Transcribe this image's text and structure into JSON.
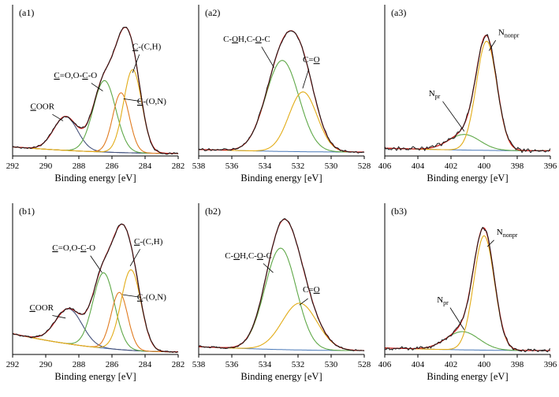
{
  "figure": {
    "xlabel": "Binding energy [eV]",
    "background": "#ffffff",
    "colors": {
      "experimental": "#1a1a1a",
      "envelope": "#cf2020",
      "green": "#5fa848",
      "orange": "#e07b20",
      "gold": "#e2ac18",
      "navy": "#45517b",
      "baseline": "#4878b8",
      "text": "#000000"
    }
  },
  "chart_data": [
    {
      "type": "line",
      "id": "a1",
      "panel_label": "(a1)",
      "x_max": 292,
      "x_min": 282,
      "ticks": [
        292,
        290,
        288,
        286,
        284,
        282
      ],
      "xlabel": "Binding energy [eV]",
      "noise": 0.012,
      "seed": 101,
      "baseline": {
        "left": 0.07,
        "right": 0.02
      },
      "peaks": [
        {
          "name": "COOR",
          "center": 288.8,
          "sigma": 0.72,
          "amp": 0.26,
          "color": "navy"
        },
        {
          "name": "C=O,O-C-O",
          "center": 286.45,
          "sigma": 0.68,
          "amp": 0.55,
          "color": "green"
        },
        {
          "name": "C-(O,N)",
          "center": 285.45,
          "sigma": 0.5,
          "amp": 0.46,
          "color": "orange"
        },
        {
          "name": "C-(C,H)",
          "center": 284.75,
          "sigma": 0.55,
          "amp": 0.64,
          "color": "gold"
        }
      ],
      "annotations": [
        {
          "segments": [
            {
              "t": "C",
              "u": true
            },
            {
              "t": "OOR"
            }
          ],
          "x": 290.2,
          "y": 0.36,
          "anchor": "middle",
          "line": [
            289.6,
            0.32,
            288.95,
            0.27
          ]
        },
        {
          "segments": [
            {
              "t": "C",
              "u": true
            },
            {
              "t": "=O,O-"
            },
            {
              "t": "C",
              "u": true
            },
            {
              "t": "-O"
            }
          ],
          "x": 288.2,
          "y": 0.6,
          "anchor": "middle",
          "line": [
            287.25,
            0.56,
            286.55,
            0.5
          ]
        },
        {
          "segments": [
            {
              "t": "C",
              "u": true
            },
            {
              "t": "-(C,H)"
            }
          ],
          "x": 283.9,
          "y": 0.82,
          "anchor": "middle",
          "line": [
            284.35,
            0.78,
            284.75,
            0.64
          ]
        },
        {
          "segments": [
            {
              "t": "C",
              "u": true
            },
            {
              "t": "-(O,N)"
            }
          ],
          "x": 283.6,
          "y": 0.4,
          "anchor": "middle",
          "line": [
            284.25,
            0.42,
            285.3,
            0.44
          ]
        }
      ]
    },
    {
      "type": "line",
      "id": "a2",
      "panel_label": "(a2)",
      "x_max": 538,
      "x_min": 528,
      "ticks": [
        538,
        536,
        534,
        532,
        530,
        528
      ],
      "xlabel": "Binding energy [eV]",
      "noise": 0.012,
      "seed": 202,
      "baseline": {
        "left": 0.05,
        "right": 0.03
      },
      "peaks": [
        {
          "name": "C-OH,C-O-C",
          "center": 532.95,
          "sigma": 1.0,
          "amp": 0.7,
          "color": "green"
        },
        {
          "name": "C=O",
          "center": 531.7,
          "sigma": 0.85,
          "amp": 0.46,
          "color": "gold"
        }
      ],
      "annotations": [
        {
          "segments": [
            {
              "t": "C-"
            },
            {
              "t": "O",
              "u": true
            },
            {
              "t": "H,C-"
            },
            {
              "t": "O",
              "u": true
            },
            {
              "t": "-C"
            }
          ],
          "x": 535.1,
          "y": 0.88,
          "anchor": "middle",
          "line": [
            534.2,
            0.84,
            533.45,
            0.68
          ]
        },
        {
          "segments": [
            {
              "t": "C="
            },
            {
              "t": "O",
              "u": true
            }
          ],
          "x": 531.2,
          "y": 0.72,
          "anchor": "middle",
          "line": [
            531.35,
            0.67,
            531.72,
            0.52
          ]
        }
      ]
    },
    {
      "type": "line",
      "id": "a3",
      "panel_label": "(a3)",
      "x_max": 406,
      "x_min": 396,
      "ticks": [
        406,
        404,
        402,
        400,
        398,
        396
      ],
      "xlabel": "Binding energy [eV]",
      "noise": 0.022,
      "seed": 303,
      "baseline": {
        "left": 0.06,
        "right": 0.04
      },
      "peaks": [
        {
          "name": "Npr",
          "center": 401.2,
          "sigma": 0.95,
          "amp": 0.12,
          "color": "green"
        },
        {
          "name": "Nnonpr",
          "center": 399.85,
          "sigma": 0.62,
          "amp": 0.84,
          "color": "gold"
        }
      ],
      "annotations": [
        {
          "segments": [
            {
              "t": "N"
            },
            {
              "t": "nonpr",
              "sub": true
            }
          ],
          "x": 399.15,
          "y": 0.93,
          "anchor": "start",
          "line": [
            399.3,
            0.89,
            399.7,
            0.81
          ]
        },
        {
          "segments": [
            {
              "t": "N"
            },
            {
              "t": "pr",
              "sub": true
            }
          ],
          "x": 403.0,
          "y": 0.46,
          "anchor": "middle",
          "line": [
            402.5,
            0.42,
            401.2,
            0.19
          ]
        }
      ]
    },
    {
      "type": "line",
      "id": "b1",
      "panel_label": "(b1)",
      "x_max": 292,
      "x_min": 282,
      "ticks": [
        292,
        290,
        288,
        286,
        284,
        282
      ],
      "xlabel": "Binding energy [eV]",
      "noise": 0.012,
      "seed": 404,
      "baseline": {
        "left": 0.16,
        "right": 0.02
      },
      "peaks": [
        {
          "name": "COOR",
          "center": 288.6,
          "sigma": 0.8,
          "amp": 0.27,
          "color": "navy"
        },
        {
          "name": "C=O,O-C-O",
          "center": 286.5,
          "sigma": 0.65,
          "amp": 0.58,
          "color": "green"
        },
        {
          "name": "C-(O,N)",
          "center": 285.55,
          "sigma": 0.5,
          "amp": 0.44,
          "color": "orange"
        },
        {
          "name": "C-(C,H)",
          "center": 284.85,
          "sigma": 0.6,
          "amp": 0.62,
          "color": "gold"
        }
      ],
      "annotations": [
        {
          "segments": [
            {
              "t": "C",
              "u": true
            },
            {
              "t": "=O,O-"
            },
            {
              "t": "C",
              "u": true
            },
            {
              "t": "-O"
            }
          ],
          "x": 288.3,
          "y": 0.8,
          "anchor": "middle",
          "line": [
            287.3,
            0.76,
            286.6,
            0.63
          ]
        },
        {
          "segments": [
            {
              "t": "C",
              "u": true
            },
            {
              "t": "-(C,H)"
            }
          ],
          "x": 283.8,
          "y": 0.85,
          "anchor": "middle",
          "line": [
            284.3,
            0.81,
            284.9,
            0.68
          ]
        },
        {
          "segments": [
            {
              "t": "C",
              "u": true
            },
            {
              "t": "OOR"
            }
          ],
          "x": 290.25,
          "y": 0.34,
          "anchor": "middle",
          "line": [
            289.6,
            0.3,
            288.8,
            0.28
          ]
        },
        {
          "segments": [
            {
              "t": "C",
              "u": true
            },
            {
              "t": "-(O,N)"
            }
          ],
          "x": 283.6,
          "y": 0.42,
          "anchor": "middle",
          "line": [
            284.25,
            0.44,
            285.35,
            0.46
          ]
        }
      ]
    },
    {
      "type": "line",
      "id": "b2",
      "panel_label": "(b2)",
      "x_max": 538,
      "x_min": 528,
      "ticks": [
        538,
        536,
        534,
        532,
        530,
        528
      ],
      "xlabel": "Binding energy [eV]",
      "noise": 0.012,
      "seed": 505,
      "baseline": {
        "left": 0.06,
        "right": 0.03
      },
      "peaks": [
        {
          "name": "C-OH,C-O-C",
          "center": 533.05,
          "sigma": 0.95,
          "amp": 0.78,
          "color": "green"
        },
        {
          "name": "C=O",
          "center": 531.9,
          "sigma": 1.05,
          "amp": 0.36,
          "color": "gold"
        }
      ],
      "annotations": [
        {
          "segments": [
            {
              "t": "C-"
            },
            {
              "t": "O",
              "u": true
            },
            {
              "t": "H,C-"
            },
            {
              "t": "O",
              "u": true
            },
            {
              "t": "-C"
            }
          ],
          "x": 535.0,
          "y": 0.74,
          "anchor": "middle",
          "line": [
            534.1,
            0.7,
            533.5,
            0.63
          ]
        },
        {
          "segments": [
            {
              "t": "C="
            },
            {
              "t": "O",
              "u": true
            }
          ],
          "x": 531.2,
          "y": 0.48,
          "anchor": "middle",
          "line": [
            531.4,
            0.43,
            531.92,
            0.38
          ]
        }
      ]
    },
    {
      "type": "line",
      "id": "b3",
      "panel_label": "(b3)",
      "x_max": 406,
      "x_min": 396,
      "ticks": [
        406,
        404,
        402,
        400,
        398,
        396
      ],
      "xlabel": "Binding energy [eV]",
      "noise": 0.02,
      "seed": 606,
      "baseline": {
        "left": 0.05,
        "right": 0.03
      },
      "peaks": [
        {
          "name": "Npr",
          "center": 401.3,
          "sigma": 1.0,
          "amp": 0.14,
          "color": "green"
        },
        {
          "name": "Nnonpr",
          "center": 400.0,
          "sigma": 0.62,
          "amp": 0.88,
          "color": "gold"
        }
      ],
      "annotations": [
        {
          "segments": [
            {
              "t": "N"
            },
            {
              "t": "nonpr",
              "sub": true
            }
          ],
          "x": 399.25,
          "y": 0.92,
          "anchor": "start",
          "line": [
            399.4,
            0.88,
            399.8,
            0.83
          ]
        },
        {
          "segments": [
            {
              "t": "N"
            },
            {
              "t": "pr",
              "sub": true
            }
          ],
          "x": 402.5,
          "y": 0.4,
          "anchor": "middle",
          "line": [
            402.05,
            0.36,
            401.2,
            0.19
          ]
        }
      ]
    }
  ]
}
